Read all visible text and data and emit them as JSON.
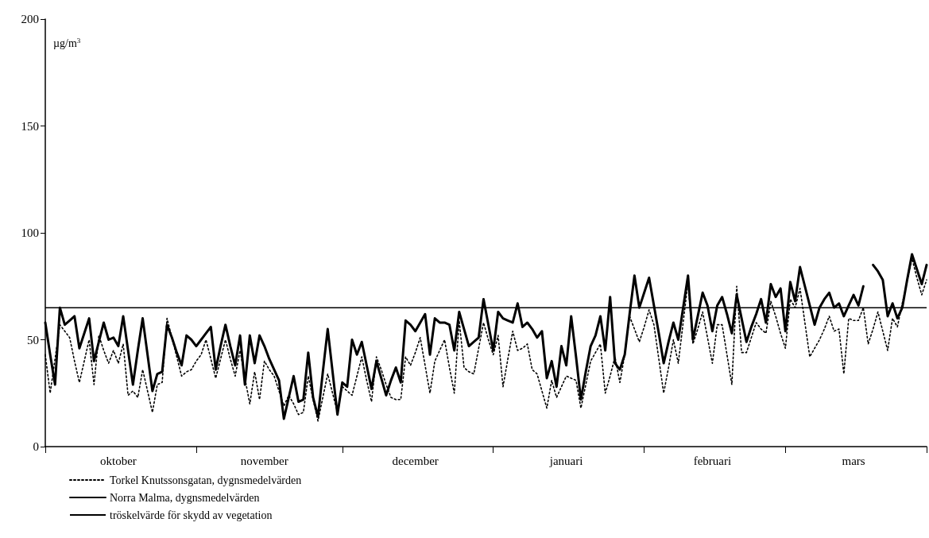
{
  "chart_data": {
    "type": "line",
    "ylabel": "µg/m$^{3}$",
    "categories": [
      null,
      null,
      null,
      null,
      null,
      null,
      null,
      null,
      null,
      null,
      null,
      null,
      null,
      null,
      null,
      "oktober",
      null,
      null,
      null,
      null,
      null,
      null,
      null,
      null,
      null,
      null,
      null,
      null,
      null,
      null,
      null,
      null,
      null,
      null,
      null,
      null,
      null,
      null,
      null,
      null,
      null,
      null,
      null,
      null,
      null,
      "november",
      null,
      null,
      null,
      null,
      null,
      null,
      null,
      null,
      null,
      null,
      null,
      null,
      null,
      null,
      null,
      null,
      null,
      null,
      null,
      null,
      null,
      null,
      null,
      null,
      null,
      null,
      null,
      null,
      null,
      null,
      "december",
      null,
      null,
      null,
      null,
      null,
      null,
      null,
      null,
      null,
      null,
      null,
      null,
      null,
      null,
      null,
      null,
      null,
      null,
      null,
      null,
      null,
      null,
      null,
      null,
      null,
      null,
      null,
      null,
      null,
      null,
      "januari",
      null,
      null,
      null,
      null,
      null,
      null,
      null,
      null,
      null,
      null,
      null,
      null,
      null,
      null,
      null,
      null,
      null,
      null,
      null,
      null,
      null,
      null,
      null,
      null,
      null,
      null,
      null,
      null,
      null,
      "februari",
      null,
      null,
      null,
      null,
      null,
      null,
      null,
      null,
      null,
      null,
      null,
      null,
      null,
      null,
      null,
      null,
      null,
      null,
      null,
      null,
      null,
      null,
      null,
      null,
      null,
      null,
      null,
      null,
      "mars",
      null,
      null,
      null,
      null,
      null,
      null,
      null,
      null,
      null,
      null,
      null,
      null,
      null,
      null,
      null
    ],
    "ylim": [
      0,
      200
    ],
    "yticks": [
      0,
      50,
      100,
      150,
      200
    ],
    "grid": false,
    "legend": "bottom left",
    "marker": "none",
    "ref_lines": [
      {
        "axis": "y",
        "value": 65,
        "label": "tröskelvärde för skydd av vegetation",
        "color": "#000000",
        "line_style": "solid"
      }
    ],
    "series": [
      {
        "name": "Torkel Knutssonsgatan, dygnsmedelvärden",
        "color": "#000000",
        "line_style": "dotted",
        "values": [
          43,
          25,
          41,
          57,
          54,
          51,
          40,
          30,
          40,
          50,
          29,
          52,
          45,
          39,
          45,
          39,
          48,
          24,
          26,
          23,
          36,
          26,
          16,
          29,
          30,
          60,
          51,
          42,
          33,
          35,
          36,
          40,
          43,
          50,
          41,
          32,
          41,
          50,
          41,
          33,
          45,
          32,
          20,
          35,
          22,
          40,
          36,
          33,
          26,
          19,
          24,
          20,
          15,
          16,
          33,
          22,
          12,
          23,
          34,
          25,
          16,
          28,
          26,
          24,
          33,
          42,
          31,
          21,
          42,
          36,
          29,
          23,
          22,
          22,
          42,
          38,
          44,
          51,
          38,
          25,
          40,
          45,
          50,
          37,
          25,
          59,
          37,
          35,
          34,
          46,
          58,
          50,
          43,
          52,
          28,
          41,
          54,
          45,
          46,
          48,
          36,
          34,
          26,
          18,
          31,
          23,
          28,
          33,
          32,
          31,
          18,
          29,
          40,
          44,
          48,
          25,
          33,
          42,
          30,
          43,
          61,
          55,
          49,
          56,
          64,
          57,
          41,
          25,
          37,
          50,
          39,
          58,
          77,
          48,
          55,
          63,
          51,
          39,
          57,
          57,
          43,
          29,
          75,
          44,
          44,
          51,
          58,
          55,
          53,
          68,
          61,
          53,
          46,
          69,
          65,
          74,
          58,
          42,
          46,
          50,
          55,
          61,
          54,
          55,
          34,
          60,
          59,
          59,
          65,
          48,
          55,
          63,
          54,
          45,
          60,
          56,
          67,
          77,
          88,
          79,
          71,
          78
        ]
      },
      {
        "name": "Norra Malma, dygnsmedelvärden",
        "color": "#000000",
        "line_style": "solid",
        "values": [
          58,
          43,
          29,
          65,
          57,
          59,
          61,
          46,
          53,
          60,
          40,
          49,
          58,
          50,
          51,
          47,
          61,
          45,
          29,
          45,
          60,
          43,
          26,
          34,
          35,
          57,
          51,
          44,
          38,
          52,
          50,
          47,
          50,
          53,
          56,
          36,
          47,
          57,
          47,
          38,
          52,
          29,
          52,
          39,
          52,
          47,
          41,
          36,
          31,
          13,
          23,
          33,
          21,
          22,
          44,
          23,
          14,
          35,
          55,
          35,
          15,
          30,
          28,
          50,
          43,
          49,
          38,
          27,
          40,
          32,
          24,
          31,
          37,
          30,
          59,
          57,
          54,
          58,
          62,
          43,
          60,
          58,
          58,
          57,
          45,
          63,
          55,
          47,
          49,
          51,
          69,
          57,
          45,
          63,
          60,
          59,
          58,
          67,
          56,
          58,
          55,
          51,
          54,
          32,
          40,
          28,
          47,
          38,
          61,
          42,
          22,
          35,
          47,
          52,
          61,
          45,
          70,
          39,
          36,
          43,
          62,
          80,
          65,
          72,
          79,
          66,
          53,
          39,
          49,
          58,
          50,
          65,
          80,
          50,
          61,
          72,
          66,
          54,
          66,
          70,
          62,
          53,
          71,
          60,
          49,
          56,
          62,
          69,
          58,
          76,
          70,
          74,
          54,
          77,
          68,
          84,
          75,
          66,
          57,
          65,
          69,
          72,
          65,
          67,
          61,
          66,
          71,
          66,
          75,
          null,
          85,
          82,
          78,
          61,
          67,
          60,
          65,
          78,
          90,
          83,
          76,
          85
        ]
      }
    ]
  }
}
